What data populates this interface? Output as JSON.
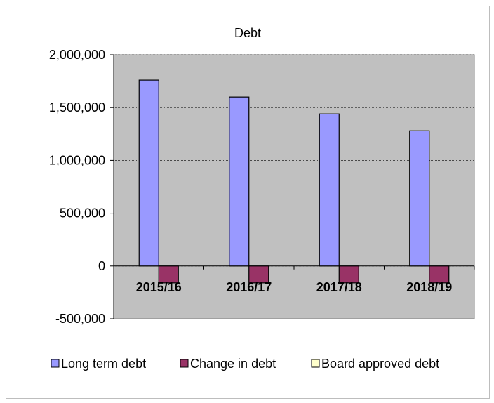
{
  "chart_data": {
    "type": "bar",
    "title": "Debt",
    "xlabel": "",
    "ylabel": "",
    "categories": [
      "2015/16",
      "2016/17",
      "2017/18",
      "2018/19"
    ],
    "series": [
      {
        "name": "Long term debt",
        "values": [
          1760000,
          1600000,
          1440000,
          1280000
        ],
        "color": "#9999ff"
      },
      {
        "name": "Change in debt",
        "values": [
          -160000,
          -160000,
          -160000,
          -160000
        ],
        "color": "#993366"
      },
      {
        "name": "Board approved debt",
        "values": [
          0,
          0,
          0,
          0
        ],
        "color": "#ffffcc"
      }
    ],
    "ylim": [
      -500000,
      2000000
    ],
    "yticks": [
      2000000,
      1500000,
      1000000,
      500000,
      0,
      -500000
    ],
    "ytick_labels": [
      "2,000,000",
      "1,500,000",
      "1,000,000",
      "500,000",
      "0",
      "-500,000"
    ],
    "grid": true,
    "legend": "bottom",
    "plot_background": "#c0c0c0"
  }
}
